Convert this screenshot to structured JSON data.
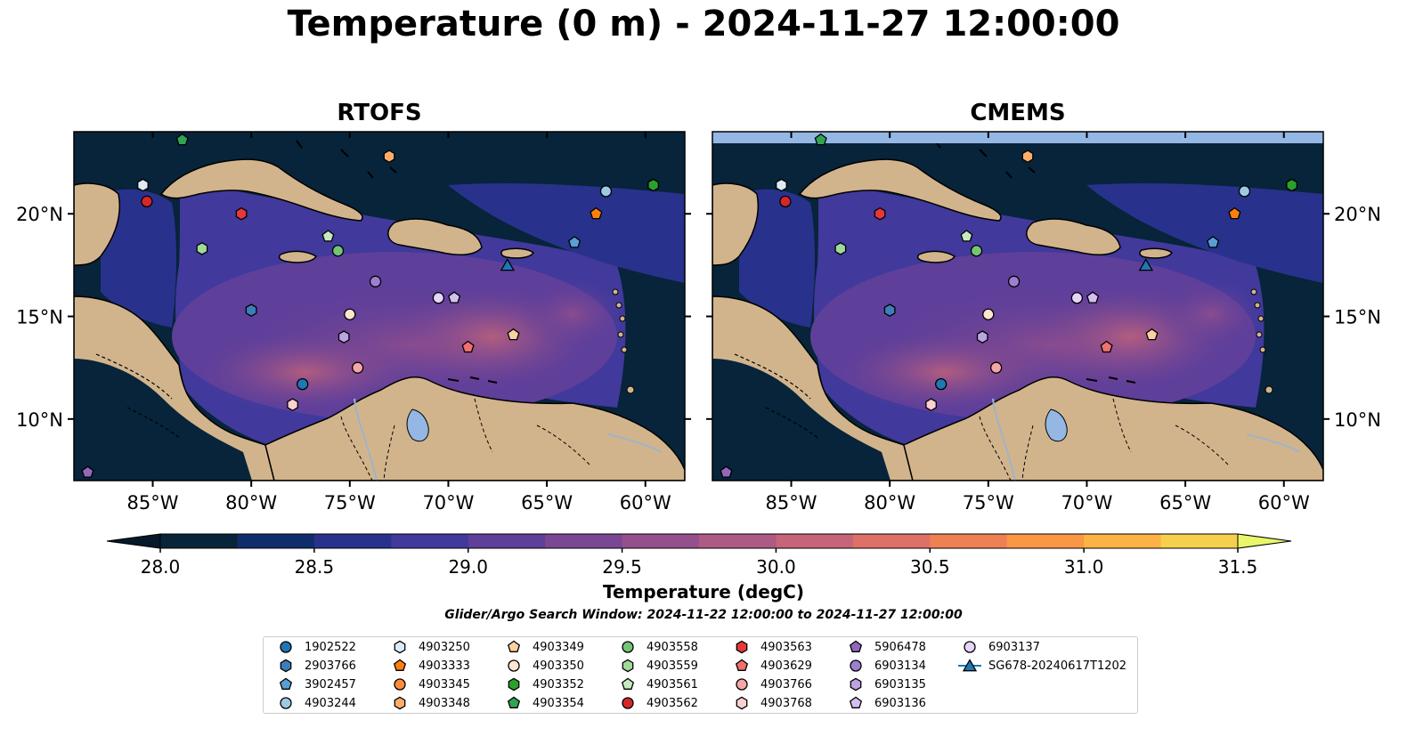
{
  "title": "Temperature (0 m) - 2024-11-27 12:00:00",
  "panels": [
    {
      "title": "RTOFS"
    },
    {
      "title": "CMEMS"
    }
  ],
  "map": {
    "lon_range": [
      -89,
      -58
    ],
    "lat_range": [
      7,
      24
    ],
    "lon_ticks": [
      "85°W",
      "80°W",
      "75°W",
      "70°W",
      "65°W",
      "60°W"
    ],
    "lon_tick_values": [
      -85,
      -80,
      -75,
      -70,
      -65,
      -60
    ],
    "lat_ticks": [
      "10°N",
      "15°N",
      "20°N"
    ],
    "lat_tick_values": [
      10,
      15,
      20
    ],
    "land_color": "#d2b48c",
    "ocean_low_color": "#07243a",
    "lake_color": "#94b7e4"
  },
  "colorbar": {
    "label": "Temperature (degC)",
    "min": 28.0,
    "max": 31.5,
    "tick_labels": [
      "28.0",
      "28.5",
      "29.0",
      "29.5",
      "30.0",
      "30.5",
      "31.0",
      "31.5"
    ],
    "colors": [
      "#07243a",
      "#0f2d6a",
      "#28328c",
      "#41399c",
      "#5e3f9a",
      "#7a4794",
      "#944f8c",
      "#ad5a84",
      "#c66479",
      "#dd7067",
      "#ee8054",
      "#f99745",
      "#fcb245",
      "#f6d04d"
    ],
    "extend_low": "#05192a",
    "extend_high": "#e8f76a"
  },
  "search_window": "Glider/Argo Search Window: 2024-11-22 12:00:00 to 2024-11-27 12:00:00",
  "platforms": [
    {
      "id": "1902522",
      "marker": "circle",
      "color": "#1f77b4",
      "lon": -77.4,
      "lat": 11.7
    },
    {
      "id": "2903766",
      "marker": "hexagon",
      "color": "#3c7fb8",
      "lon": -80.0,
      "lat": 15.3
    },
    {
      "id": "3902457",
      "marker": "pentagon",
      "color": "#5a9fd4",
      "lon": -63.6,
      "lat": 18.6
    },
    {
      "id": "4903244",
      "marker": "circle",
      "color": "#9ecae1",
      "lon": -62.0,
      "lat": 21.1
    },
    {
      "id": "4903250",
      "marker": "hexagon",
      "color": "#deebf7",
      "lon": -85.5,
      "lat": 21.4
    },
    {
      "id": "4903333",
      "marker": "pentagon",
      "color": "#ff7f0e",
      "lon": -62.5,
      "lat": 20.0
    },
    {
      "id": "4903345",
      "marker": "circle",
      "color": "#fd8d3c",
      "lon": -59.6,
      "lat": 21.4
    },
    {
      "id": "4903348",
      "marker": "hexagon",
      "color": "#fdae6b",
      "lon": -73.0,
      "lat": 22.8
    },
    {
      "id": "4903349",
      "marker": "pentagon",
      "color": "#fdd0a2",
      "lon": -66.7,
      "lat": 14.1
    },
    {
      "id": "4903350",
      "marker": "circle",
      "color": "#fee6ce",
      "lon": -75.0,
      "lat": 15.1
    },
    {
      "id": "4903352",
      "marker": "hexagon",
      "color": "#2ca02c",
      "lon": -59.6,
      "lat": 21.4
    },
    {
      "id": "4903354",
      "marker": "pentagon",
      "color": "#31a354",
      "lon": -83.5,
      "lat": 23.6
    },
    {
      "id": "4903558",
      "marker": "circle",
      "color": "#74c476",
      "lon": -75.6,
      "lat": 18.2
    },
    {
      "id": "4903559",
      "marker": "hexagon",
      "color": "#a1d99b",
      "lon": -82.5,
      "lat": 18.3
    },
    {
      "id": "4903561",
      "marker": "pentagon",
      "color": "#c7e9c0",
      "lon": -76.1,
      "lat": 18.9
    },
    {
      "id": "4903562",
      "marker": "circle",
      "color": "#d62728",
      "lon": -85.3,
      "lat": 20.6
    },
    {
      "id": "4903563",
      "marker": "hexagon",
      "color": "#e6373a",
      "lon": -80.5,
      "lat": 20.0
    },
    {
      "id": "4903629",
      "marker": "pentagon",
      "color": "#f07070",
      "lon": -69.0,
      "lat": 13.5
    },
    {
      "id": "4903766",
      "marker": "circle",
      "color": "#f4a6a6",
      "lon": -74.6,
      "lat": 12.5
    },
    {
      "id": "4903768",
      "marker": "hexagon",
      "color": "#fbd0d0",
      "lon": -77.9,
      "lat": 10.7
    },
    {
      "id": "5906478",
      "marker": "pentagon",
      "color": "#9467bd",
      "lon": -88.3,
      "lat": 7.4
    },
    {
      "id": "6903134",
      "marker": "circle",
      "color": "#9e7fcf",
      "lon": -73.7,
      "lat": 16.7
    },
    {
      "id": "6903135",
      "marker": "hexagon",
      "color": "#bca3e3",
      "lon": -75.3,
      "lat": 14.0
    },
    {
      "id": "6903136",
      "marker": "pentagon",
      "color": "#d4bff2",
      "lon": -69.7,
      "lat": 15.9
    },
    {
      "id": "6903137",
      "marker": "circle",
      "color": "#e5d5fb",
      "lon": -70.5,
      "lat": 15.9
    },
    {
      "id": "SG678-20240617T1202",
      "marker": "triangle",
      "color": "#1f77b4",
      "lon": -67.0,
      "lat": 17.5
    }
  ]
}
